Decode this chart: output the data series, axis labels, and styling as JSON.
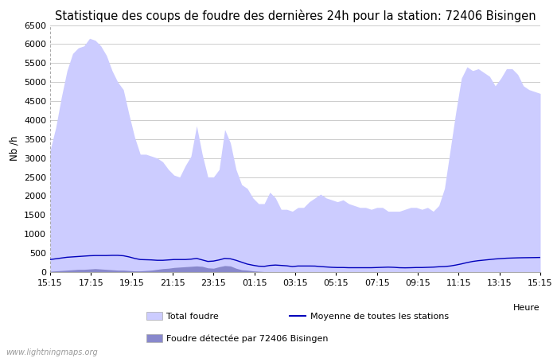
{
  "title": "Statistique des coups de foudre des dernières 24h pour la station: 72406 Bisingen",
  "ylabel": "Nb /h",
  "xlabel": "Heure",
  "watermark": "www.lightningmaps.org",
  "ylim": [
    0,
    6500
  ],
  "yticks": [
    0,
    500,
    1000,
    1500,
    2000,
    2500,
    3000,
    3500,
    4000,
    4500,
    5000,
    5500,
    6000,
    6500
  ],
  "xtick_labels": [
    "15:15",
    "17:15",
    "19:15",
    "21:15",
    "23:15",
    "01:15",
    "03:15",
    "05:15",
    "07:15",
    "09:15",
    "11:15",
    "13:15",
    "15:15"
  ],
  "xtick_positions": [
    0,
    2,
    4,
    6,
    8,
    10,
    12,
    14,
    16,
    18,
    20,
    22,
    24
  ],
  "color_total": "#ccccff",
  "color_station": "#8888cc",
  "color_moyenne": "#0000bb",
  "background_color": "#ffffff",
  "grid_color": "#cccccc",
  "title_fontsize": 10.5,
  "label_fontsize": 8.5,
  "tick_fontsize": 8,
  "total_foudre": [
    3200,
    3800,
    4600,
    5300,
    5750,
    5900,
    5950,
    6150,
    6100,
    5950,
    5700,
    5300,
    5000,
    4800,
    4150,
    3550,
    3100,
    3100,
    3050,
    3000,
    2900,
    2700,
    2550,
    2500,
    2800,
    3050,
    3850,
    3100,
    2500,
    2500,
    2700,
    3750,
    3400,
    2700,
    2300,
    2200,
    1950,
    1800,
    1800,
    2100,
    1950,
    1650,
    1650,
    1600,
    1700,
    1700,
    1850,
    1950,
    2050,
    1950,
    1900,
    1850,
    1900,
    1800,
    1750,
    1700,
    1700,
    1650,
    1700,
    1700,
    1600,
    1600,
    1600,
    1650,
    1700,
    1700,
    1650,
    1700,
    1600,
    1750,
    2200,
    3200,
    4200,
    5100,
    5400,
    5300,
    5350,
    5250,
    5150,
    4900,
    5100,
    5350,
    5350,
    5200,
    4900,
    4800,
    4750,
    4700
  ],
  "station_foudre": [
    20,
    30,
    40,
    50,
    60,
    70,
    70,
    80,
    90,
    80,
    70,
    60,
    50,
    50,
    40,
    30,
    30,
    40,
    50,
    70,
    90,
    100,
    120,
    130,
    140,
    150,
    160,
    150,
    110,
    100,
    140,
    170,
    160,
    100,
    60,
    50,
    30,
    20,
    10,
    10,
    10,
    10,
    10,
    10,
    10,
    10,
    10,
    10,
    10,
    10,
    10,
    10,
    10,
    10,
    10,
    10,
    10,
    10,
    10,
    10,
    10,
    10,
    10,
    10,
    10,
    10,
    10,
    10,
    10,
    10,
    10,
    10,
    10,
    10,
    10,
    10,
    10,
    10,
    10,
    10,
    10,
    10,
    10,
    10,
    10,
    10,
    10,
    10
  ],
  "moyenne": [
    330,
    350,
    370,
    390,
    400,
    410,
    420,
    430,
    435,
    435,
    435,
    440,
    440,
    430,
    400,
    360,
    330,
    325,
    320,
    310,
    310,
    320,
    330,
    330,
    330,
    340,
    360,
    320,
    280,
    290,
    320,
    360,
    350,
    310,
    260,
    210,
    180,
    155,
    150,
    175,
    185,
    175,
    165,
    145,
    160,
    160,
    160,
    158,
    145,
    135,
    125,
    120,
    120,
    115,
    115,
    115,
    115,
    115,
    120,
    125,
    130,
    125,
    115,
    112,
    115,
    120,
    120,
    125,
    130,
    140,
    145,
    160,
    185,
    215,
    250,
    280,
    300,
    315,
    330,
    345,
    355,
    365,
    370,
    375,
    378,
    380,
    382,
    385
  ]
}
